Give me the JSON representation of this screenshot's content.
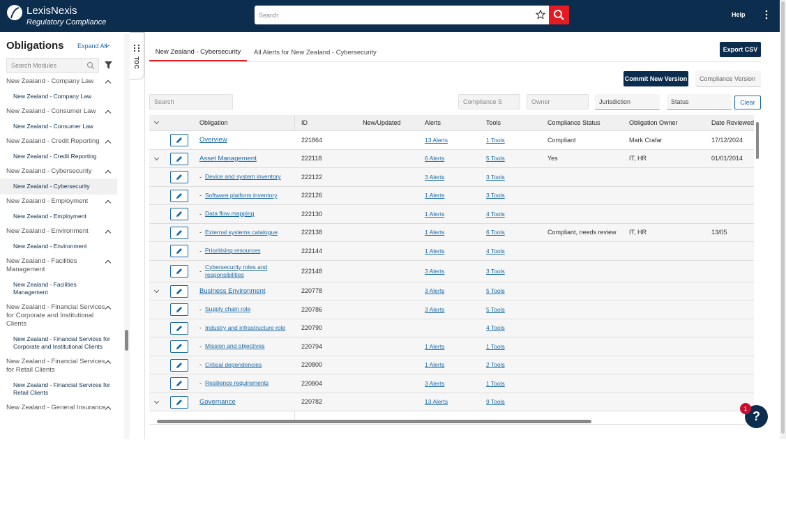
{
  "header": {
    "brand": "LexisNexis",
    "product": "Regulatory Compliance",
    "search": "Search",
    "help": "Help"
  },
  "sidebar": {
    "title": "Obligations",
    "expand": "Expand All",
    "search": "Search Modules",
    "modules": [
      {
        "name": "New Zealand - Company Law",
        "children": [
          "New Zealand - Company Law"
        ]
      },
      {
        "name": "New Zealand - Consumer Law",
        "children": [
          "New Zealand - Consumer Law"
        ]
      },
      {
        "name": "New Zealand - Credit Reporting",
        "children": [
          "New Zealand - Credit Reporting"
        ]
      },
      {
        "name": "New Zealand - Cybersecurity",
        "children": [
          "New Zealand - Cybersecurity"
        ]
      },
      {
        "name": "New Zealand - Employment",
        "children": [
          "New Zealand - Employment"
        ]
      },
      {
        "name": "New Zealand - Environment",
        "children": [
          "New Zealand - Environment"
        ]
      },
      {
        "name": "New Zealand - Facilities Management",
        "children": [
          "New Zealand - Facilities Management"
        ]
      },
      {
        "name": "New Zealand - Financial Services for Corporate and Institutional Clients",
        "children": [
          "New Zealand - Financial Services for Corporate and Institutional Clients"
        ]
      },
      {
        "name": "New Zealand - Financial Services for Retail Clients",
        "children": [
          "New Zealand - Financial Services for Retail Clients"
        ]
      },
      {
        "name": "New Zealand - General Insurance"
      }
    ],
    "toc": "TOC"
  },
  "tabs": [
    "New Zealand - Cybersecurity",
    "All Alerts for New Zealand - Cybersecurity"
  ],
  "actions": {
    "export": "Export CSV",
    "commit": "Commit New Version",
    "version": "Compliance Version"
  },
  "filters": {
    "search": "Search",
    "compliance": "Compliance S",
    "owner": "Owner",
    "jurisdiction": "Jurisdiction",
    "status": "Status",
    "clear": "Clear"
  },
  "table": {
    "columns": [
      "Obligation",
      "ID",
      "New/Updated",
      "Alerts",
      "Tools",
      "Compliance Status",
      "Obligation Owner",
      "Date Reviewed"
    ],
    "rows": [
      {
        "obligation": "Overview",
        "id": "221864",
        "alerts": "13 Alerts",
        "tools": "1 Tools",
        "status": "Compliant",
        "owner": "Mark Crafar",
        "date": "17/12/2024"
      },
      {
        "obligation": "Asset Management",
        "id": "222118",
        "alerts": "6 Alerts",
        "tools": "5 Tools",
        "status": "Yes",
        "owner": "IT, HR",
        "date": "01/01/2014",
        "children": [
          {
            "obligation": "Device and system inventory",
            "id": "222122",
            "alerts": "3 Alerts",
            "tools": "3 Tools"
          },
          {
            "obligation": "Software platform inventory",
            "id": "222126",
            "alerts": "1 Alerts",
            "tools": "3 Tools"
          },
          {
            "obligation": "Data flow mapping",
            "id": "222130",
            "alerts": "1 Alerts",
            "tools": "4 Tools"
          },
          {
            "obligation": "External systems catalogue",
            "id": "222138",
            "alerts": "1 Alerts",
            "tools": "6 Tools",
            "status": "Compliant, needs review",
            "owner": "IT, HR",
            "date": "13/05"
          },
          {
            "obligation": "Prioritising resources",
            "id": "222144",
            "alerts": "1 Alerts",
            "tools": "4 Tools"
          },
          {
            "obligation": "Cybersecurity roles and responsibilities",
            "id": "222148",
            "alerts": "3 Alerts",
            "tools": "3 Tools"
          }
        ]
      },
      {
        "obligation": "Business Environment",
        "id": "220778",
        "alerts": "3 Alerts",
        "tools": "5 Tools",
        "children": [
          {
            "obligation": "Supply chain role",
            "id": "220786",
            "alerts": "3 Alerts",
            "tools": "5 Tools"
          },
          {
            "obligation": "Industry and infrastructure role",
            "id": "220790",
            "tools": "4 Tools"
          },
          {
            "obligation": "Mission and objectives",
            "id": "220794",
            "alerts": "1 Alerts",
            "tools": "1 Tools"
          },
          {
            "obligation": "Critical dependencies",
            "id": "220800",
            "alerts": "1 Alerts",
            "tools": "2 Tools"
          },
          {
            "obligation": "Resilience requirements",
            "id": "220804",
            "alerts": "3 Alerts",
            "tools": "1 Tools"
          }
        ]
      },
      {
        "obligation": "Governance",
        "id": "220782",
        "alerts": "13 Alerts",
        "tools": "9 Tools",
        "children": []
      }
    ]
  },
  "support": {
    "badge": 1,
    "button": "?"
  }
}
